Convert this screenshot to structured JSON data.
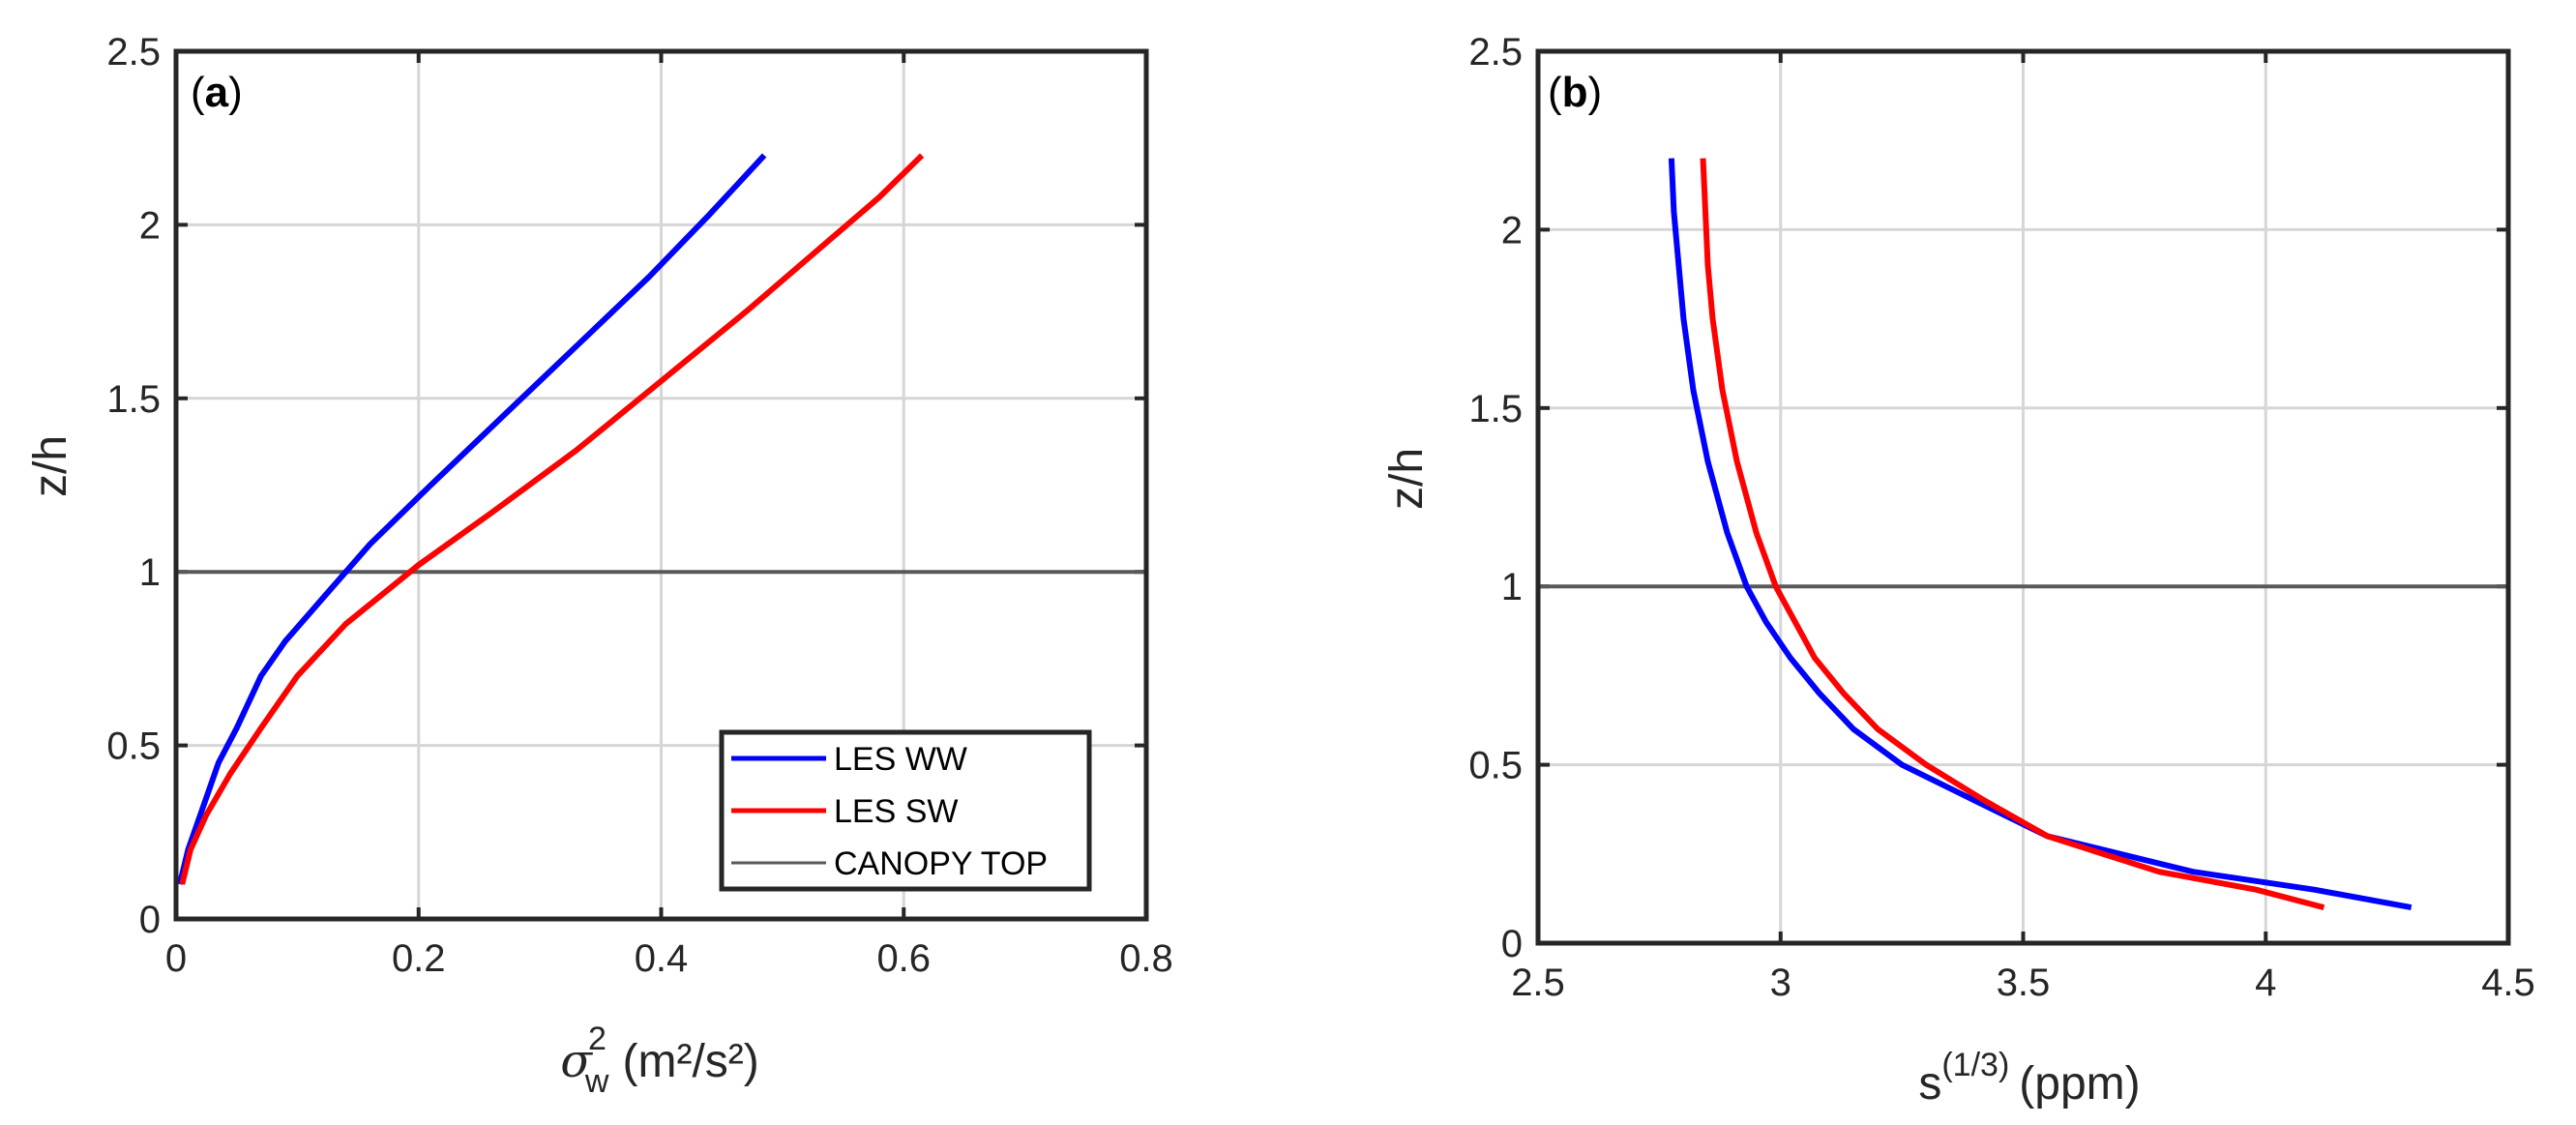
{
  "chart_data": [
    {
      "type": "line",
      "panel_label": "a",
      "xlabel": "(m²/s²)",
      "xlabel_symbol": "σ",
      "xlabel_sub": "w",
      "xlabel_sup": "2",
      "ylabel": "z/h",
      "xlim": [
        0,
        0.8
      ],
      "ylim": [
        0,
        2.5
      ],
      "xticks": [
        "0",
        "0.2",
        "0.4",
        "0.6",
        "0.8"
      ],
      "yticks": [
        "0",
        "0.5",
        "1",
        "1.5",
        "2",
        "2.5"
      ],
      "grid": true,
      "legend_position": "bottom-right",
      "reference_line": {
        "name": "CANOPY TOP",
        "y": 1,
        "color": "#595959"
      },
      "series": [
        {
          "name": "LES WW",
          "color": "#0000ff",
          "x": [
            0.003,
            0.01,
            0.02,
            0.035,
            0.05,
            0.07,
            0.09,
            0.12,
            0.16,
            0.21,
            0.27,
            0.33,
            0.39,
            0.44,
            0.485
          ],
          "y": [
            0.1,
            0.2,
            0.3,
            0.45,
            0.55,
            0.7,
            0.8,
            0.92,
            1.08,
            1.25,
            1.45,
            1.65,
            1.85,
            2.03,
            2.2
          ]
        },
        {
          "name": "LES SW",
          "color": "#ff0000",
          "x": [
            0.005,
            0.012,
            0.025,
            0.045,
            0.07,
            0.1,
            0.14,
            0.2,
            0.26,
            0.33,
            0.4,
            0.47,
            0.53,
            0.58,
            0.615
          ],
          "y": [
            0.1,
            0.2,
            0.3,
            0.42,
            0.55,
            0.7,
            0.85,
            1.02,
            1.17,
            1.35,
            1.55,
            1.75,
            1.93,
            2.08,
            2.2
          ]
        }
      ]
    },
    {
      "type": "line",
      "panel_label": "b",
      "xlabel": "(ppm)",
      "xlabel_symbol": "s",
      "xlabel_sup": "(1/3)",
      "ylabel": "z/h",
      "xlim": [
        2.5,
        4.5
      ],
      "ylim": [
        0,
        2.5
      ],
      "xticks": [
        "2.5",
        "3",
        "3.5",
        "4",
        "4.5"
      ],
      "yticks": [
        "0",
        "0.5",
        "1",
        "1.5",
        "2",
        "2.5"
      ],
      "grid": true,
      "reference_line": {
        "name": "CANOPY TOP",
        "y": 1,
        "color": "#595959"
      },
      "series": [
        {
          "name": "LES WW",
          "color": "#0000ff",
          "x": [
            4.3,
            4.1,
            3.85,
            3.55,
            3.4,
            3.25,
            3.15,
            3.08,
            3.02,
            2.97,
            2.93,
            2.89,
            2.85,
            2.82,
            2.8,
            2.79,
            2.78,
            2.775
          ],
          "y": [
            0.1,
            0.15,
            0.2,
            0.3,
            0.4,
            0.5,
            0.6,
            0.7,
            0.8,
            0.9,
            1.0,
            1.15,
            1.35,
            1.55,
            1.75,
            1.9,
            2.05,
            2.2
          ]
        },
        {
          "name": "LES SW",
          "color": "#ff0000",
          "x": [
            4.12,
            3.98,
            3.78,
            3.55,
            3.42,
            3.3,
            3.2,
            3.13,
            3.07,
            3.03,
            2.99,
            2.95,
            2.91,
            2.88,
            2.86,
            2.85,
            2.845,
            2.84
          ],
          "y": [
            0.1,
            0.15,
            0.2,
            0.3,
            0.4,
            0.5,
            0.6,
            0.7,
            0.8,
            0.9,
            1.0,
            1.15,
            1.35,
            1.55,
            1.75,
            1.9,
            2.05,
            2.2
          ]
        }
      ]
    }
  ]
}
